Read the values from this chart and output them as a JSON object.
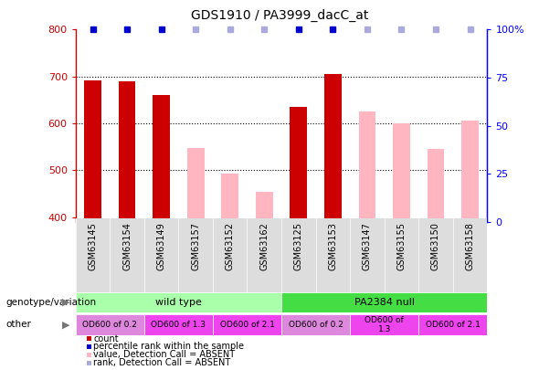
{
  "title": "GDS1910 / PA3999_dacC_at",
  "samples": [
    "GSM63145",
    "GSM63154",
    "GSM63149",
    "GSM63157",
    "GSM63152",
    "GSM63162",
    "GSM63125",
    "GSM63153",
    "GSM63147",
    "GSM63155",
    "GSM63150",
    "GSM63158"
  ],
  "count_values": [
    692,
    690,
    660,
    null,
    null,
    null,
    635,
    706,
    null,
    null,
    null,
    null
  ],
  "absent_values": [
    null,
    null,
    null,
    547,
    493,
    455,
    null,
    null,
    625,
    600,
    545,
    607
  ],
  "percentile_present": [
    true,
    true,
    true,
    false,
    false,
    false,
    true,
    true,
    false,
    false,
    false,
    false
  ],
  "percentile_absent": [
    false,
    false,
    false,
    true,
    true,
    true,
    false,
    false,
    true,
    true,
    true,
    true
  ],
  "ylim_left": [
    390,
    800
  ],
  "ylim_right": [
    0,
    100
  ],
  "yticks_left": [
    400,
    500,
    600,
    700,
    800
  ],
  "yticks_right": [
    0,
    25,
    50,
    75,
    100
  ],
  "count_color": "#CC0000",
  "absent_bar_color": "#FFB6C1",
  "percentile_color": "#0000CC",
  "absent_rank_color": "#AAAADD",
  "grid_color": "#000000",
  "bg_color": "#FFFFFF",
  "genotype_groups": [
    {
      "name": "wild type",
      "start": 0,
      "end": 6,
      "color": "#AAFFAA"
    },
    {
      "name": "PA2384 null",
      "start": 6,
      "end": 12,
      "color": "#44DD44"
    }
  ],
  "other_cells": [
    {
      "text": "OD600 of 0.2",
      "start": 0,
      "end": 2,
      "color": "#DD88DD"
    },
    {
      "text": "OD600 of 1.3",
      "start": 2,
      "end": 4,
      "color": "#EE44EE"
    },
    {
      "text": "OD600 of 2.1",
      "start": 4,
      "end": 6,
      "color": "#EE44EE"
    },
    {
      "text": "OD600 of 0.2",
      "start": 6,
      "end": 8,
      "color": "#DD88DD"
    },
    {
      "text": "OD600 of\n1.3",
      "start": 8,
      "end": 10,
      "color": "#EE44EE"
    },
    {
      "text": "OD600 of 2.1",
      "start": 10,
      "end": 12,
      "color": "#EE44EE"
    }
  ],
  "legend_items": [
    {
      "color": "#CC0000",
      "label": "count"
    },
    {
      "color": "#0000CC",
      "label": "percentile rank within the sample"
    },
    {
      "color": "#FFB6C1",
      "label": "value, Detection Call = ABSENT"
    },
    {
      "color": "#AAAADD",
      "label": "rank, Detection Call = ABSENT"
    }
  ]
}
